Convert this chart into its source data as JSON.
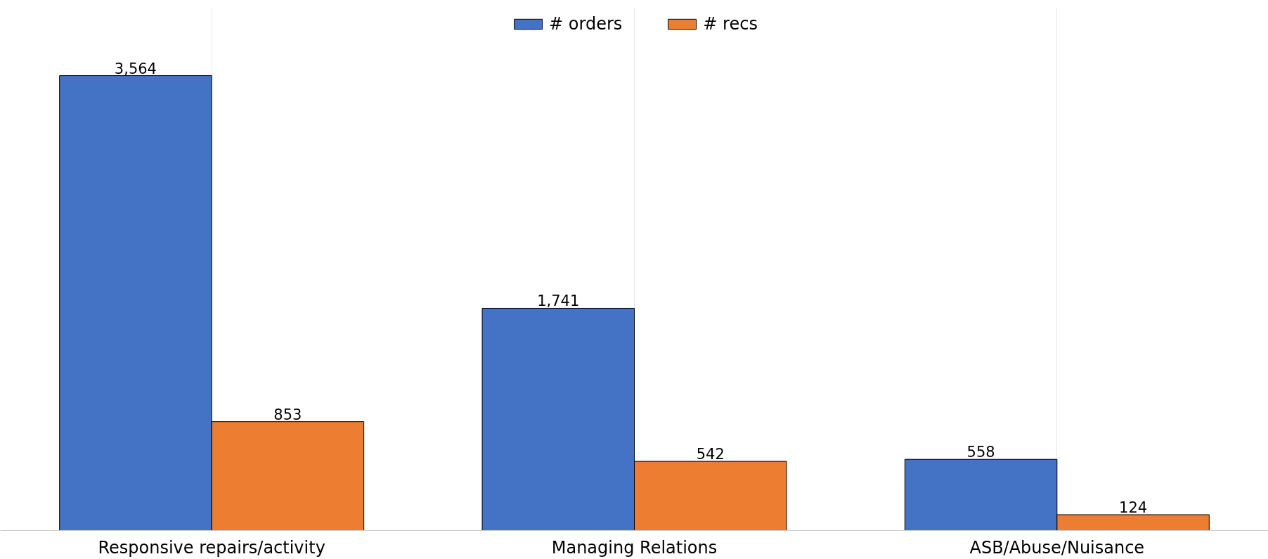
{
  "chart_data": {
    "type": "bar",
    "categories": [
      "Responsive repairs/activity",
      "Managing Relations",
      "ASB/Abuse/Nuisance"
    ],
    "series": [
      {
        "name": "# orders",
        "color": "#4472c4",
        "values": [
          3564,
          1741,
          558
        ],
        "value_labels": [
          "3,564",
          "1,741",
          "558"
        ]
      },
      {
        "name": "# recs",
        "color": "#ed7d31",
        "values": [
          853,
          542,
          124
        ],
        "value_labels": [
          "853",
          "542",
          "124"
        ]
      }
    ],
    "grid": "x",
    "legend": "top"
  }
}
